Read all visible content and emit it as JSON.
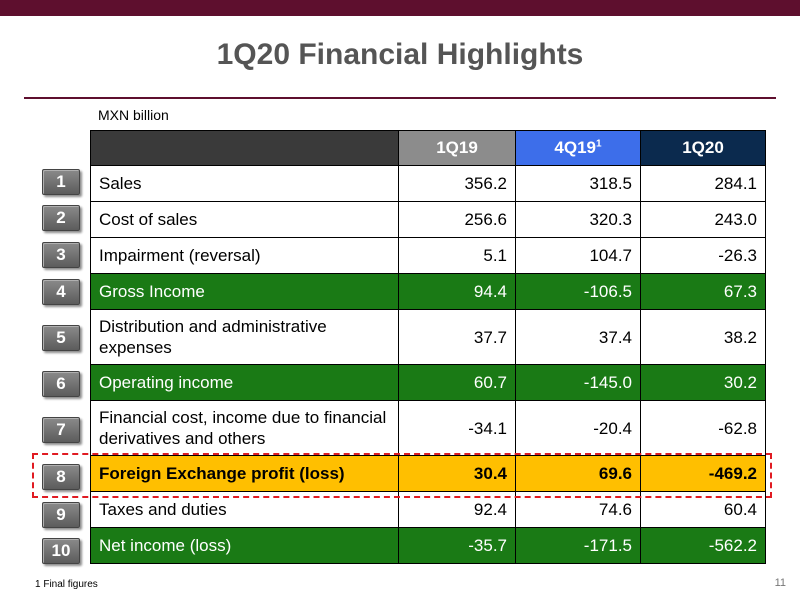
{
  "title": "1Q20 Financial Highlights",
  "unit": "MXN billion",
  "columns": [
    {
      "label": "1Q19",
      "sup": ""
    },
    {
      "label": "4Q19",
      "sup": "1"
    },
    {
      "label": "1Q20",
      "sup": ""
    }
  ],
  "rows": [
    {
      "num": "1",
      "label": "Sales",
      "values": [
        "356.2",
        "318.5",
        "284.1"
      ]
    },
    {
      "num": "2",
      "label": "Cost of sales",
      "values": [
        "256.6",
        "320.3",
        "243.0"
      ]
    },
    {
      "num": "3",
      "label": "Impairment (reversal)",
      "values": [
        "5.1",
        "104.7",
        "-26.3"
      ]
    },
    {
      "num": "4",
      "label": "Gross Income",
      "values": [
        "94.4",
        "-106.5",
        "67.3"
      ]
    },
    {
      "num": "5",
      "label": "Distribution and administrative expenses",
      "values": [
        "37.7",
        "37.4",
        "38.2"
      ]
    },
    {
      "num": "6",
      "label": "Operating income",
      "values": [
        "60.7",
        "-145.0",
        "30.2"
      ]
    },
    {
      "num": "7",
      "label": "Financial cost, income due to financial derivatives and others",
      "values": [
        "-34.1",
        "-20.4",
        "-62.8"
      ]
    },
    {
      "num": "8",
      "label": "Foreign Exchange profit (loss)",
      "values": [
        "30.4",
        "69.6",
        "-469.2"
      ]
    },
    {
      "num": "9",
      "label": "Taxes and duties",
      "values": [
        "92.4",
        "74.6",
        "60.4"
      ]
    },
    {
      "num": "10",
      "label": "Net income (loss)",
      "values": [
        "-35.7",
        "-171.5",
        "-562.2"
      ]
    }
  ],
  "footnote": "1 Final figures",
  "page_number": "11",
  "colors": {
    "brand_bar": "#5e0f2e",
    "header_1q19": "#8c8c8c",
    "header_4q19": "#3d6eea",
    "header_1q20": "#0b2a4e",
    "row_green": "#1a7a15",
    "row_highlight": "#ffbf00",
    "dashed_highlight": "#e01b22"
  }
}
